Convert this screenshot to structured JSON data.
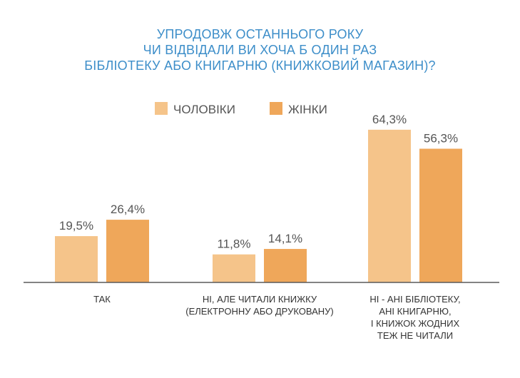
{
  "chart_data": {
    "type": "bar",
    "title_lines": [
      "УПРОДОВЖ ОСТАННЬОГО РОКУ",
      "ЧИ ВІДВІДАЛИ ВИ ХОЧА Б ОДИН РАЗ",
      "БІБЛІОТЕКУ АБО КНИГАРНЮ (КНИЖКОВИЙ МАГАЗИН)?"
    ],
    "categories": [
      [
        "ТАК"
      ],
      [
        "НІ, АЛЕ ЧИТАЛИ КНИЖКУ",
        "(ЕЛЕКТРОННУ АБО ДРУКОВАНУ)"
      ],
      [
        "НІ - АНІ БІБЛІОТЕКУ,",
        "АНІ КНИГАРНЮ,",
        "І КНИЖОК ЖОДНИХ",
        "ТЕЖ НЕ ЧИТАЛИ"
      ]
    ],
    "series": [
      {
        "name": "ЧОЛОВІКИ",
        "color": "#f5c48a",
        "values": [
          19.5,
          11.8,
          64.3
        ],
        "labels": [
          "19,5%",
          "11,8%",
          "64,3%"
        ]
      },
      {
        "name": "ЖІНКИ",
        "color": "#efa75a",
        "values": [
          26.4,
          14.1,
          56.3
        ],
        "labels": [
          "26,4%",
          "14,1%",
          "56,3%"
        ]
      }
    ],
    "ylim": [
      0,
      100
    ],
    "grid": false,
    "legend_position": "top-center"
  }
}
